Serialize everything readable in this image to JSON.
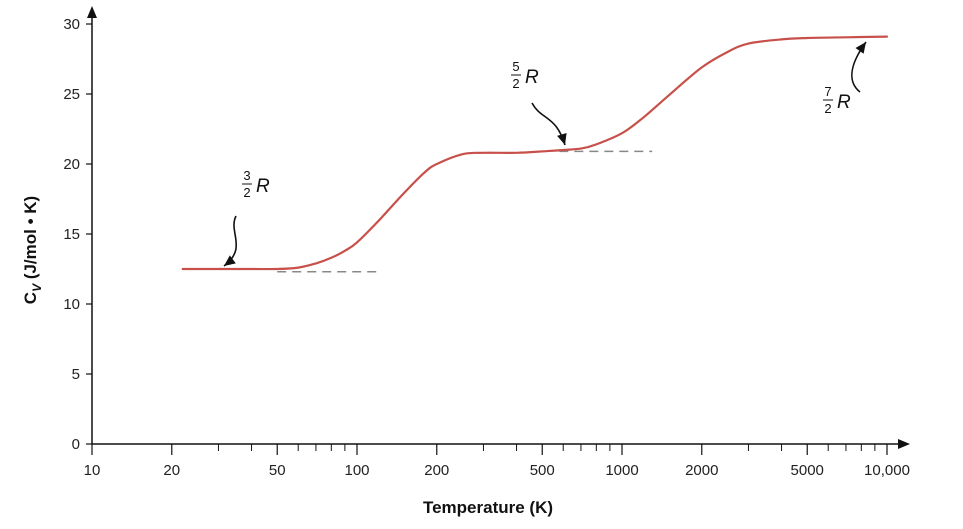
{
  "chart_data": {
    "type": "line",
    "title": "",
    "xlabel": "Temperature (K)",
    "ylabel_main": "C",
    "ylabel_sub": "V",
    "ylabel_rest": " (J/mol • K)",
    "x_scale": "log",
    "xlim": [
      10,
      12000
    ],
    "ylim": [
      0,
      31
    ],
    "grid": false,
    "y_ticks": [
      0,
      5,
      10,
      15,
      20,
      25,
      30
    ],
    "y_tick_labels": [
      "0",
      "5",
      "10",
      "15",
      "20",
      "25",
      "30"
    ],
    "x_major_ticks": [
      10,
      20,
      50,
      100,
      200,
      500,
      1000,
      2000,
      5000,
      10000
    ],
    "x_tick_labels": [
      "10",
      "20",
      "50",
      "100",
      "200",
      "500",
      "1000",
      "2000",
      "5000",
      "10,000"
    ],
    "x_minor_ticks": [
      30,
      40,
      60,
      70,
      80,
      90,
      300,
      400,
      600,
      700,
      800,
      900,
      3000,
      4000,
      6000,
      7000,
      8000,
      9000
    ],
    "series": [
      {
        "color": "#c8504a",
        "x": [
          22,
          30,
          40,
          50,
          60,
          70,
          80,
          90,
          100,
          120,
          150,
          180,
          200,
          250,
          300,
          400,
          500,
          600,
          700,
          800,
          1000,
          1200,
          1500,
          2000,
          2500,
          3000,
          4000,
          5000,
          7000,
          10000
        ],
        "y": [
          12.5,
          12.5,
          12.5,
          12.5,
          12.6,
          12.9,
          13.3,
          13.8,
          14.4,
          15.9,
          17.9,
          19.4,
          20.0,
          20.7,
          20.8,
          20.8,
          20.9,
          21.0,
          21.1,
          21.4,
          22.2,
          23.3,
          24.9,
          26.9,
          28.0,
          28.6,
          28.9,
          29.0,
          29.05,
          29.1
        ]
      }
    ],
    "reference_lines": [
      {
        "x": [
          50,
          120
        ],
        "y": 12.3,
        "style": "dashed",
        "color": "#888888"
      },
      {
        "x": [
          580,
          1300
        ],
        "y": 20.9,
        "style": "dashed",
        "color": "#888888"
      }
    ],
    "annotations": [
      {
        "numerator": "3",
        "denominator": "2",
        "symbol": "R",
        "points_to": [
          29,
          12.5
        ]
      },
      {
        "numerator": "5",
        "denominator": "2",
        "symbol": "R",
        "points_to": [
          590,
          21.0
        ]
      },
      {
        "numerator": "7",
        "denominator": "2",
        "symbol": "R",
        "points_to": [
          8500,
          29.1
        ]
      }
    ]
  }
}
